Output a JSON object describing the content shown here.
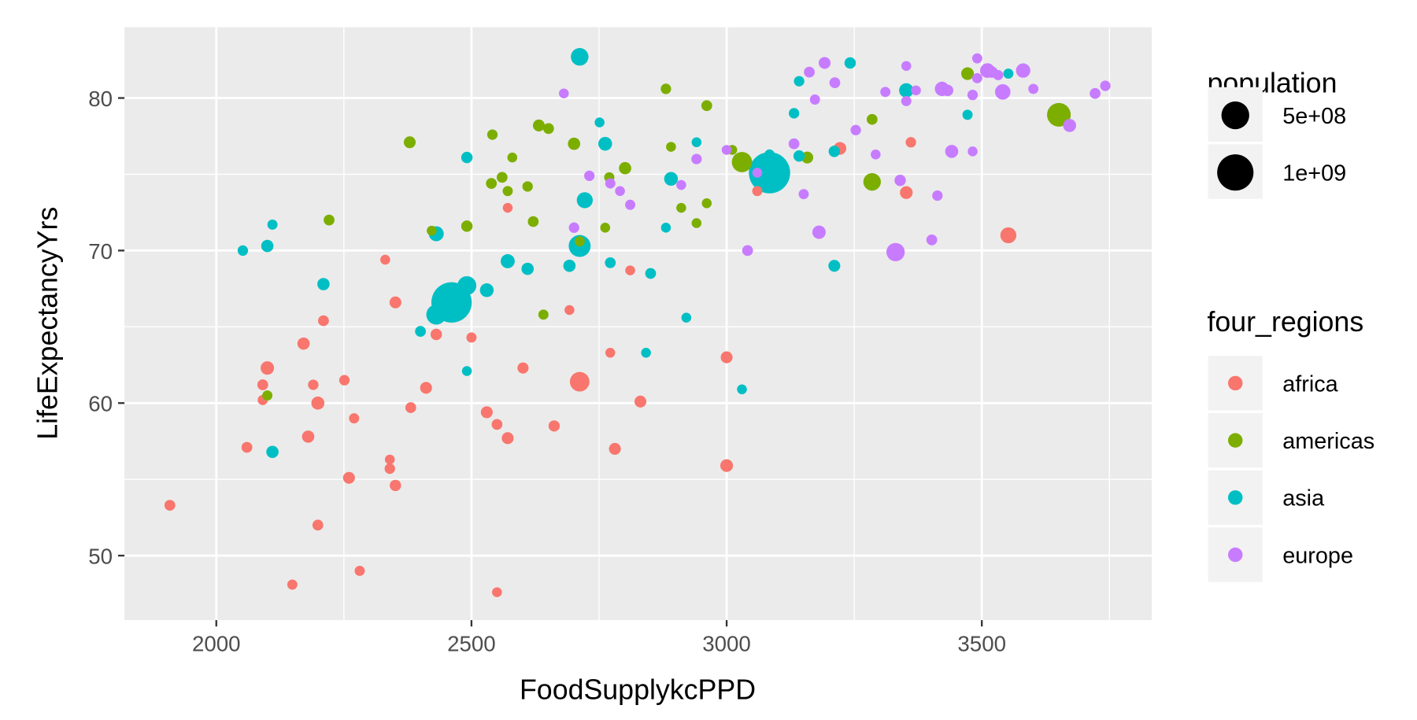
{
  "chart_data": {
    "type": "scatter",
    "title": "",
    "xlabel": "FoodSupplykcPPD",
    "ylabel": "LifeExpectancyYrs",
    "xlim": [
      1820,
      3833
    ],
    "ylim": [
      45.77,
      84.64
    ],
    "xticks": [
      2000,
      2500,
      3000,
      3500
    ],
    "yticks": [
      50,
      60,
      70,
      80
    ],
    "grid": true,
    "legend_position": "right",
    "size_legend": {
      "title": "population",
      "entries": [
        {
          "label": "5e+08",
          "value": 500
        },
        {
          "label": "1e+09",
          "value": 1000
        }
      ]
    },
    "color_legend": {
      "title": "four_regions",
      "entries": [
        "africa",
        "americas",
        "asia",
        "europe"
      ]
    },
    "colors": {
      "africa": "#F8766D",
      "americas": "#7CAE00",
      "asia": "#00BFC4",
      "europe": "#C77CFF"
    },
    "point_format": "[FoodSupplykcPPD, LifeExpectancyYrs, population_millions]",
    "series": [
      {
        "name": "africa",
        "points": [
          [
            1909,
            53.3,
            15
          ],
          [
            2060,
            57.1,
            15
          ],
          [
            2091,
            60.2,
            10
          ],
          [
            2091,
            61.2,
            15
          ],
          [
            2100,
            62.3,
            45
          ],
          [
            2149,
            48.1,
            10
          ],
          [
            2171,
            63.9,
            30
          ],
          [
            2180,
            57.8,
            30
          ],
          [
            2190,
            61.2,
            12
          ],
          [
            2199,
            60.0,
            40
          ],
          [
            2199,
            52.0,
            15
          ],
          [
            2210,
            65.4,
            15
          ],
          [
            2251,
            61.5,
            12
          ],
          [
            2260,
            55.1,
            25
          ],
          [
            2270,
            59.0,
            10
          ],
          [
            2281,
            49.0,
            10
          ],
          [
            2331,
            69.4,
            8
          ],
          [
            2340,
            56.3,
            8
          ],
          [
            2340,
            55.7,
            12
          ],
          [
            2351,
            54.6,
            20
          ],
          [
            2351,
            66.6,
            25
          ],
          [
            2381,
            59.7,
            15
          ],
          [
            2411,
            61.0,
            25
          ],
          [
            2431,
            64.5,
            20
          ],
          [
            2500,
            64.3,
            10
          ],
          [
            2530,
            59.4,
            25
          ],
          [
            2550,
            58.6,
            15
          ],
          [
            2550,
            47.6,
            8
          ],
          [
            2571,
            72.8,
            8
          ],
          [
            2571,
            57.7,
            25
          ],
          [
            2601,
            62.3,
            18
          ],
          [
            2662,
            58.5,
            18
          ],
          [
            2692,
            66.1,
            8
          ],
          [
            2712,
            61.4,
            180
          ],
          [
            2772,
            63.3,
            8
          ],
          [
            2781,
            57.0,
            25
          ],
          [
            2811,
            68.7,
            8
          ],
          [
            2831,
            60.1,
            25
          ],
          [
            3000,
            63.0,
            25
          ],
          [
            3000,
            55.9,
            35
          ],
          [
            3060,
            73.9,
            10
          ],
          [
            3222,
            76.7,
            35
          ],
          [
            3352,
            73.8,
            35
          ],
          [
            3361,
            77.1,
            12
          ],
          [
            3552,
            71.0,
            90
          ]
        ]
      },
      {
        "name": "americas",
        "points": [
          [
            2100,
            60.5,
            10
          ],
          [
            2221,
            72.0,
            15
          ],
          [
            2379,
            77.1,
            25
          ],
          [
            2422,
            71.3,
            8
          ],
          [
            2491,
            71.6,
            20
          ],
          [
            2541,
            77.6,
            12
          ],
          [
            2539,
            74.4,
            15
          ],
          [
            2560,
            74.8,
            15
          ],
          [
            2571,
            73.9,
            10
          ],
          [
            2580,
            76.1,
            8
          ],
          [
            2610,
            74.2,
            12
          ],
          [
            2621,
            71.9,
            15
          ],
          [
            2632,
            78.2,
            25
          ],
          [
            2651,
            78.0,
            15
          ],
          [
            2641,
            65.8,
            10
          ],
          [
            2701,
            77.0,
            30
          ],
          [
            2712,
            70.6,
            10
          ],
          [
            2762,
            71.5,
            8
          ],
          [
            2770,
            74.8,
            10
          ],
          [
            2801,
            75.4,
            30
          ],
          [
            2881,
            80.6,
            12
          ],
          [
            2891,
            76.8,
            8
          ],
          [
            2911,
            72.8,
            8
          ],
          [
            2941,
            71.8,
            8
          ],
          [
            2961,
            79.5,
            15
          ],
          [
            2961,
            73.1,
            8
          ],
          [
            3011,
            76.6,
            8
          ],
          [
            3030,
            75.8,
            200
          ],
          [
            3158,
            76.1,
            25
          ],
          [
            3285,
            78.6,
            15
          ],
          [
            3285,
            74.5,
            125
          ],
          [
            3472,
            81.6,
            35
          ],
          [
            3651,
            78.9,
            320
          ]
        ]
      },
      {
        "name": "asia",
        "points": [
          [
            2052,
            70.0,
            12
          ],
          [
            2100,
            70.3,
            30
          ],
          [
            2110,
            71.7,
            10
          ],
          [
            2110,
            56.8,
            30
          ],
          [
            2210,
            67.8,
            30
          ],
          [
            2400,
            64.7,
            15
          ],
          [
            2431,
            71.1,
            70
          ],
          [
            2431,
            65.8,
            190
          ],
          [
            2461,
            66.6,
            1300
          ],
          [
            2491,
            67.7,
            160
          ],
          [
            2491,
            62.1,
            8
          ],
          [
            2491,
            76.1,
            20
          ],
          [
            2530,
            67.4,
            50
          ],
          [
            2571,
            69.3,
            55
          ],
          [
            2610,
            68.8,
            30
          ],
          [
            2692,
            69.0,
            30
          ],
          [
            2712,
            82.7,
            127
          ],
          [
            2712,
            70.3,
            255
          ],
          [
            2722,
            73.3,
            90
          ],
          [
            2751,
            78.4,
            8
          ],
          [
            2762,
            77.0,
            50
          ],
          [
            2772,
            69.2,
            15
          ],
          [
            2851,
            68.5,
            15
          ],
          [
            2842,
            63.3,
            8
          ],
          [
            2881,
            71.5,
            8
          ],
          [
            2891,
            74.7,
            50
          ],
          [
            2921,
            65.6,
            8
          ],
          [
            2941,
            77.1,
            8
          ],
          [
            3030,
            60.9,
            8
          ],
          [
            3084,
            75.1,
            1370
          ],
          [
            3084,
            76.3,
            10
          ],
          [
            3132,
            79.0,
            12
          ],
          [
            3142,
            81.1,
            12
          ],
          [
            3142,
            76.2,
            20
          ],
          [
            3211,
            69.0,
            25
          ],
          [
            3211,
            76.5,
            20
          ],
          [
            3242,
            82.3,
            20
          ],
          [
            3352,
            80.5,
            60
          ],
          [
            3472,
            78.9,
            10
          ],
          [
            3552,
            81.6,
            10
          ]
        ]
      },
      {
        "name": "europe",
        "points": [
          [
            2681,
            80.3,
            8
          ],
          [
            2701,
            71.5,
            12
          ],
          [
            2731,
            74.9,
            12
          ],
          [
            2772,
            74.4,
            10
          ],
          [
            2791,
            73.9,
            8
          ],
          [
            2811,
            73.0,
            10
          ],
          [
            2911,
            74.3,
            8
          ],
          [
            2941,
            76.0,
            12
          ],
          [
            3000,
            76.6,
            8
          ],
          [
            3060,
            75.1,
            8
          ],
          [
            3041,
            70.0,
            15
          ],
          [
            3132,
            77.0,
            15
          ],
          [
            3151,
            73.7,
            10
          ],
          [
            3162,
            81.7,
            15
          ],
          [
            3173,
            79.9,
            10
          ],
          [
            3181,
            71.2,
            45
          ],
          [
            3192,
            82.3,
            25
          ],
          [
            3212,
            81.0,
            15
          ],
          [
            3253,
            77.9,
            12
          ],
          [
            3292,
            76.3,
            8
          ],
          [
            3311,
            80.4,
            10
          ],
          [
            3331,
            69.9,
            145
          ],
          [
            3340,
            74.6,
            20
          ],
          [
            3352,
            82.1,
            8
          ],
          [
            3352,
            79.8,
            10
          ],
          [
            3371,
            80.5,
            8
          ],
          [
            3402,
            70.7,
            15
          ],
          [
            3413,
            73.6,
            12
          ],
          [
            3422,
            80.6,
            60
          ],
          [
            3433,
            80.5,
            20
          ],
          [
            3441,
            76.5,
            40
          ],
          [
            3482,
            80.2,
            12
          ],
          [
            3482,
            76.5,
            8
          ],
          [
            3491,
            82.6,
            10
          ],
          [
            3491,
            81.3,
            10
          ],
          [
            3511,
            81.8,
            65
          ],
          [
            3520,
            81.7,
            20
          ],
          [
            3532,
            81.5,
            10
          ],
          [
            3541,
            80.4,
            80
          ],
          [
            3581,
            81.8,
            60
          ],
          [
            3601,
            80.6,
            10
          ],
          [
            3672,
            78.2,
            40
          ],
          [
            3722,
            80.3,
            15
          ],
          [
            3742,
            80.8,
            12
          ]
        ]
      }
    ]
  }
}
